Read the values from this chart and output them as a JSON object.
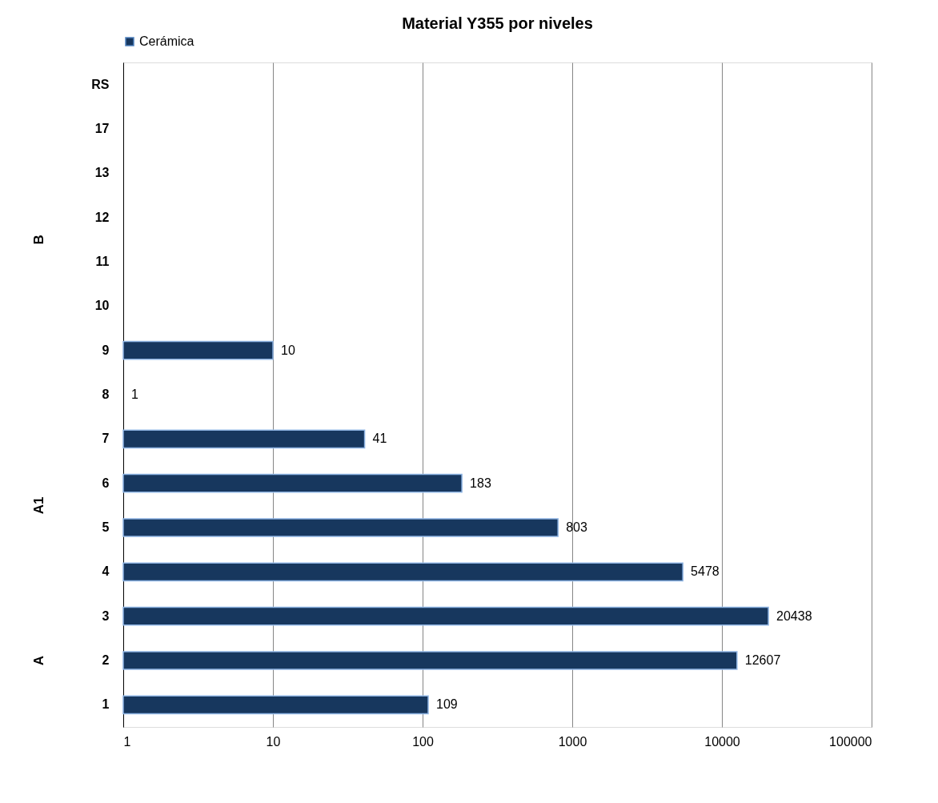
{
  "chart_data": {
    "type": "bar",
    "orientation": "horizontal",
    "title": "Material Y355 por niveles",
    "categories": [
      "RS",
      "17",
      "13",
      "12",
      "11",
      "10",
      "9",
      "8",
      "7",
      "6",
      "5",
      "4",
      "3",
      "2",
      "1"
    ],
    "series": [
      {
        "name": "Cerámica",
        "color": "#17375e",
        "values": [
          null,
          null,
          null,
          null,
          null,
          null,
          10,
          1,
          41,
          183,
          803,
          5478,
          20438,
          12607,
          109
        ]
      }
    ],
    "log": "x",
    "xlim": [
      1,
      100000
    ],
    "xticks": [
      1,
      10,
      100,
      1000,
      10000,
      100000
    ],
    "grid": "x",
    "legend": "top",
    "data_labels": true,
    "annotations": [
      "B",
      "A1",
      "A"
    ]
  }
}
